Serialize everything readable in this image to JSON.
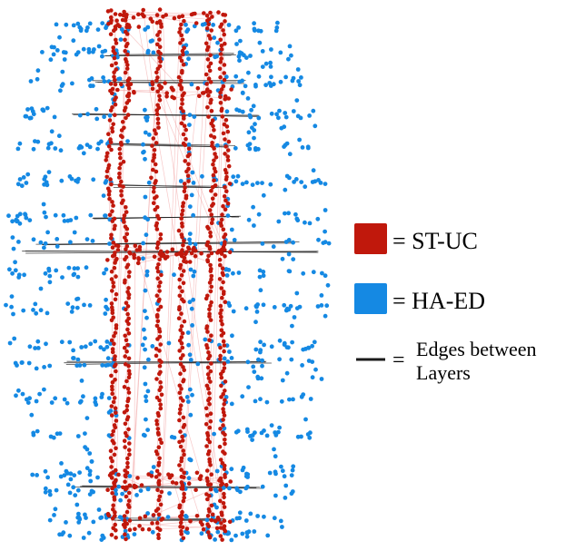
{
  "colors": {
    "st_uc": "#c0180c",
    "ha_ed": "#1589e3",
    "st_uc_edge": "#f2a3a3",
    "ha_ed_edge": "#a9cdef",
    "interlayer_edge": "#1a1a1a"
  },
  "legend": {
    "items": [
      {
        "key": "st_uc",
        "swatch_color": "#c0180c",
        "label": "= ST-UC"
      },
      {
        "key": "ha_ed",
        "swatch_color": "#1589e3",
        "label": "= HA-ED"
      },
      {
        "key": "interlayer",
        "swatch_color": "#1a1a1a",
        "eq": "=",
        "label_line1": "Edges between",
        "label_line2": "Layers"
      }
    ]
  }
}
